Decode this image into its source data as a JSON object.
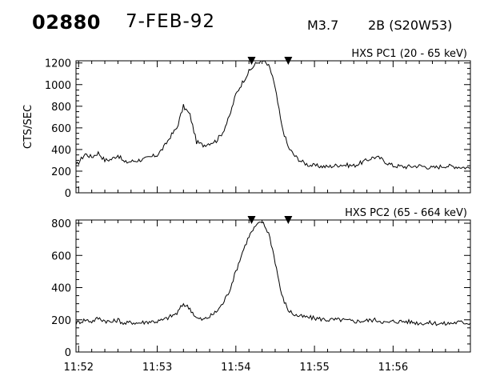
{
  "header": {
    "event_id": "02880",
    "date": "7-FEB-92",
    "goes_class": "M3.7",
    "flare_class": "2B (S20W53)"
  },
  "chart_data": [
    {
      "type": "line",
      "title": "HXS PC1 (20 - 65 keV)",
      "ylabel": "CTS/SEC",
      "xlabel": "",
      "x_range": [
        "11:51:58",
        "11:56:59"
      ],
      "ylim": [
        0,
        1220
      ],
      "yticks": [
        0,
        200,
        400,
        600,
        800,
        1000,
        1200
      ],
      "ytick_labels": [
        "0",
        "200",
        "400",
        "600",
        "800",
        "1000",
        "1200"
      ],
      "markers": [
        "11:54:12",
        "11:54:40"
      ],
      "series": [
        {
          "x": [
            "11:51:58",
            "11:52:05",
            "11:52:10",
            "11:52:15",
            "11:52:20",
            "11:52:25",
            "11:52:30",
            "11:52:35",
            "11:52:40",
            "11:52:45",
            "11:52:50",
            "11:52:55",
            "11:53:00",
            "11:53:05",
            "11:53:10",
            "11:53:15",
            "11:53:20",
            "11:53:25",
            "11:53:30",
            "11:53:35",
            "11:53:40",
            "11:53:45",
            "11:53:50",
            "11:53:55",
            "11:54:00",
            "11:54:05",
            "11:54:10",
            "11:54:15",
            "11:54:20",
            "11:54:25",
            "11:54:28",
            "11:54:31",
            "11:54:35",
            "11:54:40",
            "11:54:45",
            "11:54:50",
            "11:54:55",
            "11:55:00",
            "11:55:10",
            "11:55:20",
            "11:55:30",
            "11:55:40",
            "11:55:45",
            "11:55:50",
            "11:55:55",
            "11:56:00",
            "11:56:10",
            "11:56:20",
            "11:56:30",
            "11:56:40",
            "11:56:50",
            "11:56:59"
          ],
          "y": [
            250,
            360,
            330,
            370,
            300,
            310,
            350,
            280,
            290,
            300,
            310,
            330,
            350,
            420,
            520,
            600,
            800,
            720,
            470,
            440,
            460,
            480,
            560,
            700,
            910,
            1020,
            1120,
            1190,
            1230,
            1170,
            1080,
            900,
            620,
            420,
            340,
            290,
            260,
            250,
            240,
            260,
            250,
            300,
            330,
            320,
            280,
            250,
            240,
            250,
            230,
            250,
            240,
            230
          ]
        }
      ]
    },
    {
      "type": "line",
      "title": "HXS PC2 (65 - 664 keV)",
      "ylabel": "",
      "xlabel": "",
      "x_range": [
        "11:51:58",
        "11:56:59"
      ],
      "ylim": [
        0,
        820
      ],
      "yticks": [
        0,
        200,
        400,
        600,
        800
      ],
      "ytick_labels": [
        "0",
        "200",
        "400",
        "600",
        "800"
      ],
      "xtick_labels": [
        "11:52",
        "11:53",
        "11:54",
        "11:55",
        "11:56"
      ],
      "xticks": [
        "11:52:00",
        "11:53:00",
        "11:54:00",
        "11:55:00",
        "11:56:00"
      ],
      "markers": [
        "11:54:12",
        "11:54:40"
      ],
      "series": [
        {
          "x": [
            "11:51:58",
            "11:52:05",
            "11:52:10",
            "11:52:15",
            "11:52:20",
            "11:52:25",
            "11:52:30",
            "11:52:35",
            "11:52:40",
            "11:52:45",
            "11:52:50",
            "11:52:55",
            "11:53:00",
            "11:53:05",
            "11:53:10",
            "11:53:15",
            "11:53:20",
            "11:53:25",
            "11:53:30",
            "11:53:35",
            "11:53:40",
            "11:53:45",
            "11:53:50",
            "11:53:55",
            "11:54:00",
            "11:54:05",
            "11:54:10",
            "11:54:15",
            "11:54:20",
            "11:54:25",
            "11:54:28",
            "11:54:31",
            "11:54:35",
            "11:54:40",
            "11:54:45",
            "11:54:50",
            "11:54:55",
            "11:55:00",
            "11:55:10",
            "11:55:20",
            "11:55:30",
            "11:55:40",
            "11:55:45",
            "11:55:50",
            "11:55:55",
            "11:56:00",
            "11:56:10",
            "11:56:20",
            "11:56:30",
            "11:56:40",
            "11:56:50",
            "11:56:59"
          ],
          "y": [
            180,
            200,
            190,
            210,
            195,
            185,
            200,
            175,
            185,
            180,
            185,
            190,
            190,
            200,
            220,
            240,
            300,
            270,
            210,
            200,
            220,
            250,
            300,
            380,
            500,
            620,
            720,
            780,
            810,
            740,
            640,
            520,
            350,
            260,
            230,
            220,
            215,
            210,
            200,
            200,
            190,
            195,
            200,
            195,
            180,
            190,
            190,
            180,
            180,
            175,
            185,
            180
          ]
        }
      ]
    }
  ]
}
